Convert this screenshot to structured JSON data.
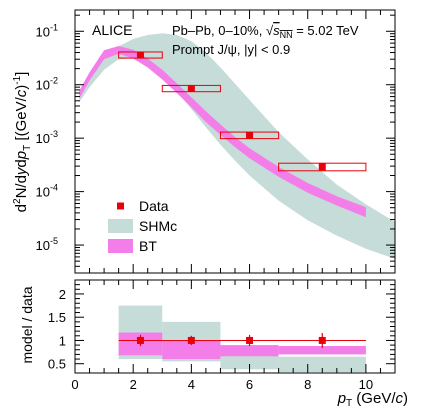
{
  "chart_data": [
    {
      "type": "scatter",
      "panel": "spectrum",
      "ylabel_parts": [
        "d",
        "2",
        "N/d",
        "y",
        "d",
        "p",
        "T",
        " [(GeV/",
        "c",
        ")",
        "-1",
        "]"
      ],
      "yscale": "log",
      "ylim": [
        3e-06,
        0.25
      ],
      "xlim": [
        0,
        11
      ],
      "yticks": [
        {
          "v": 1e-05,
          "label": "10",
          "exp": "-5"
        },
        {
          "v": 0.0001,
          "label": "10",
          "exp": "-4"
        },
        {
          "v": 0.001,
          "label": "10",
          "exp": "-3"
        },
        {
          "v": 0.01,
          "label": "10",
          "exp": "-2"
        },
        {
          "v": 0.1,
          "label": "10",
          "exp": "-1"
        }
      ],
      "annotations": {
        "experiment": "ALICE",
        "system": "Pb–Pb, 0–10%, ",
        "sqrt_sym": "√",
        "s_letter": "s",
        "s_sub": "NN",
        "energy": " = 5.02 TeV",
        "particle_line": "Prompt J/ψ, |y| < 0.9"
      },
      "legend": {
        "position": "bottom-left",
        "entries": [
          {
            "label": "Data",
            "kind": "marker",
            "color": "#e8000b"
          },
          {
            "label": "SHMc",
            "kind": "band",
            "color": "#c5dcd8"
          },
          {
            "label": "BT",
            "kind": "band",
            "color": "#f47ee9"
          }
        ]
      },
      "series": [
        {
          "name": "Data",
          "color": "#e8000b",
          "points": [
            {
              "x": 2.25,
              "y": 0.036,
              "xlo": 1.5,
              "xhi": 3.0,
              "ylo": 0.0315,
              "yhi": 0.041
            },
            {
              "x": 4.0,
              "y": 0.0085,
              "xlo": 3.0,
              "xhi": 5.0,
              "ylo": 0.0074,
              "yhi": 0.0097
            },
            {
              "x": 6.0,
              "y": 0.00113,
              "xlo": 5.0,
              "xhi": 7.0,
              "ylo": 0.00098,
              "yhi": 0.0013
            },
            {
              "x": 8.5,
              "y": 0.00029,
              "xlo": 7.0,
              "xhi": 10.0,
              "ylo": 0.000245,
              "yhi": 0.00034
            }
          ]
        },
        {
          "name": "SHMc",
          "color": "#c5dcd8",
          "x": [
            0.15,
            0.5,
            1.0,
            1.5,
            2.0,
            2.5,
            3.0,
            3.5,
            4.0,
            4.5,
            5.0,
            5.5,
            6.0,
            7.0,
            8.0,
            9.0,
            10.0,
            11.0
          ],
          "lower": [
            0.0048,
            0.009,
            0.019,
            0.03,
            0.031,
            0.025,
            0.015,
            0.0075,
            0.0035,
            0.0016,
            0.00075,
            0.00038,
            0.0002,
            6.8e-05,
            2.9e-05,
            1.5e-05,
            8.5e-06,
            5.5e-06
          ],
          "upper": [
            0.007,
            0.014,
            0.031,
            0.052,
            0.072,
            0.085,
            0.092,
            0.085,
            0.065,
            0.04,
            0.021,
            0.0105,
            0.0052,
            0.0013,
            0.0004,
            0.000135,
            5.8e-05,
            2.7e-05
          ]
        },
        {
          "name": "BT",
          "color": "#f47ee9",
          "x": [
            0.15,
            0.5,
            1.0,
            1.5,
            2.0,
            2.5,
            3.0,
            3.5,
            4.0,
            4.5,
            5.0,
            5.5,
            6.0,
            7.0,
            8.0,
            9.0,
            10.0
          ],
          "lower": [
            0.0055,
            0.012,
            0.03,
            0.038,
            0.031,
            0.021,
            0.0125,
            0.007,
            0.0038,
            0.002,
            0.00115,
            0.00068,
            0.00042,
            0.00019,
            9.5e-05,
            5.5e-05,
            3.3e-05
          ],
          "upper": [
            0.0078,
            0.017,
            0.044,
            0.053,
            0.045,
            0.031,
            0.019,
            0.0106,
            0.0058,
            0.0032,
            0.0018,
            0.00105,
            0.00065,
            0.00029,
            0.000145,
            8.2e-05,
            5.1e-05
          ]
        }
      ]
    },
    {
      "type": "scatter",
      "panel": "ratio",
      "ylabel": "model / data",
      "xlabel_p": "p",
      "xlabel_sub": "T",
      "xlabel_rest": " (GeV/",
      "xlabel_c": "c",
      "xlabel_close": ")",
      "xlim": [
        0,
        11
      ],
      "ylim": [
        0.3,
        2.3
      ],
      "xticks": [
        0,
        2,
        4,
        6,
        8,
        10
      ],
      "yticks": [
        0.5,
        1,
        1.5,
        2
      ],
      "ytick_labels": [
        "0.5",
        "1",
        "1.5",
        "2"
      ],
      "reference_line": 1,
      "series": [
        {
          "name": "SHMc",
          "color": "#c5dcd8",
          "boxes": [
            {
              "xlo": 1.5,
              "xhi": 3.0,
              "ylo": 0.6,
              "yhi": 1.75
            },
            {
              "xlo": 3.0,
              "xhi": 5.0,
              "ylo": 0.55,
              "yhi": 1.4
            },
            {
              "xlo": 5.0,
              "xhi": 7.0,
              "ylo": 0.38,
              "yhi": 0.87
            },
            {
              "xlo": 7.0,
              "xhi": 10.0,
              "ylo": 0.32,
              "yhi": 0.65
            }
          ]
        },
        {
          "name": "BT",
          "color": "#f47ee9",
          "boxes": [
            {
              "xlo": 1.5,
              "xhi": 3.0,
              "ylo": 0.68,
              "yhi": 1.17
            },
            {
              "xlo": 3.0,
              "xhi": 5.0,
              "ylo": 0.6,
              "yhi": 1.0
            },
            {
              "xlo": 5.0,
              "xhi": 7.0,
              "ylo": 0.66,
              "yhi": 0.9
            },
            {
              "xlo": 7.0,
              "xhi": 10.0,
              "ylo": 0.7,
              "yhi": 0.88
            }
          ]
        },
        {
          "name": "Data",
          "color": "#e8000b",
          "points": [
            {
              "x": 2.25,
              "y": 1.0,
              "xlo": 1.5,
              "xhi": 3.0,
              "ylo": 0.88,
              "yhi": 1.12
            },
            {
              "x": 4.0,
              "y": 1.0,
              "xlo": 3.0,
              "xhi": 5.0,
              "ylo": 0.9,
              "yhi": 1.1
            },
            {
              "x": 6.0,
              "y": 1.0,
              "xlo": 5.0,
              "xhi": 7.0,
              "ylo": 0.88,
              "yhi": 1.12
            },
            {
              "x": 8.5,
              "y": 1.0,
              "xlo": 7.0,
              "xhi": 10.0,
              "ylo": 0.84,
              "yhi": 1.16
            }
          ]
        }
      ]
    }
  ]
}
